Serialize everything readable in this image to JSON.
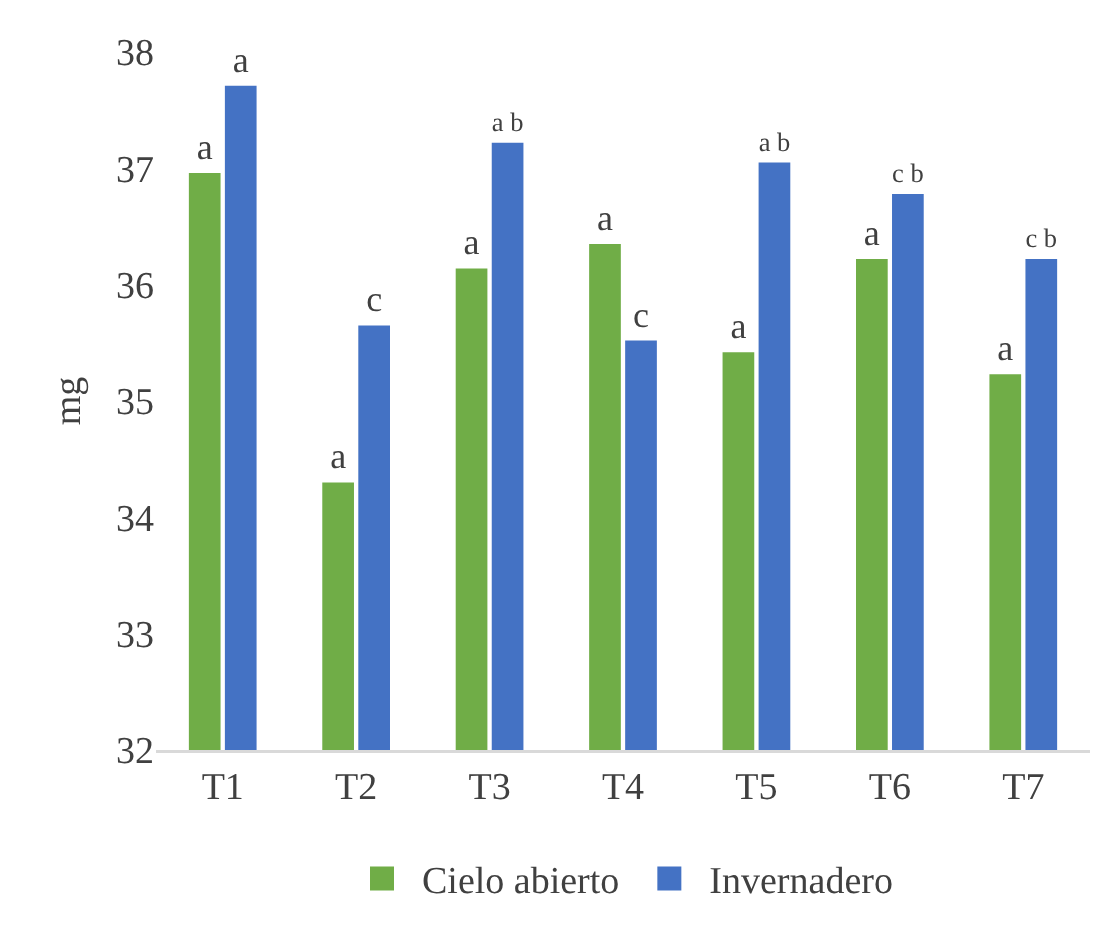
{
  "chart_data": {
    "type": "bar",
    "ylabel": "mg",
    "categories": [
      "T1",
      "T2",
      "T3",
      "T4",
      "T5",
      "T6",
      "T7"
    ],
    "series": [
      {
        "name": "Cielo abierto",
        "color": "#70ad47",
        "values": [
          36.96,
          34.3,
          36.14,
          36.35,
          35.42,
          36.22,
          35.23
        ],
        "value_labels": [
          "a",
          "a",
          "a",
          "a",
          "a",
          "a",
          "a"
        ]
      },
      {
        "name": "Invernadero",
        "color": "#4472c4",
        "values": [
          37.71,
          35.65,
          37.22,
          35.52,
          37.05,
          36.78,
          36.22
        ],
        "value_labels": [
          "a",
          "c",
          "a b",
          "c",
          "a b",
          "c b",
          "c b"
        ]
      }
    ],
    "ylim": [
      32,
      38
    ],
    "yticks": [
      32,
      33,
      34,
      35,
      36,
      37,
      38
    ],
    "grid": false,
    "legend": "bottom"
  }
}
